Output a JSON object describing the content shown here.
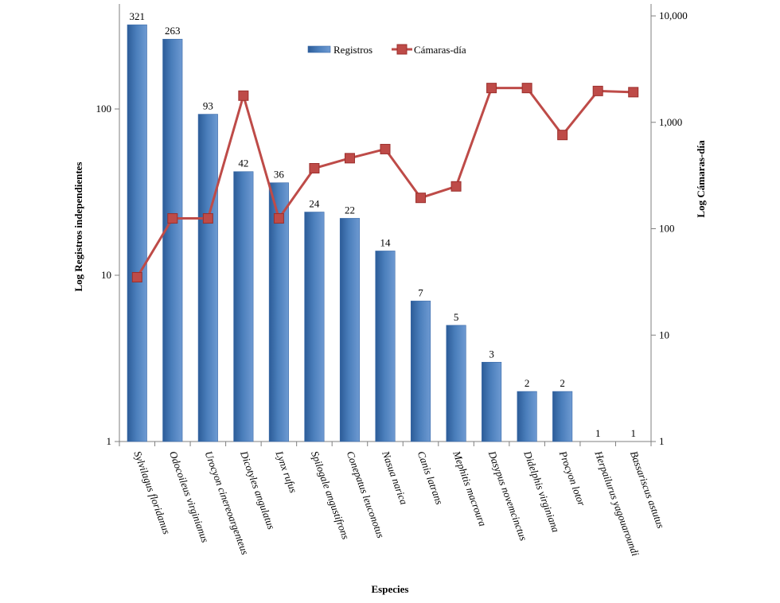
{
  "chart_data": {
    "type": "bar",
    "categories": [
      "Sylvilagus floridanus",
      "Odocoileus virginianus",
      "Urocyon cinereoargenteus",
      "Dicotyles angulatus",
      "Lynx rufus",
      "Spilogale angustifrons",
      "Conepatus leuconotus",
      "Nasua narica",
      "Canis latrans",
      "Mephitis macroura",
      "Dasypus novemcinctus",
      "Didelphis virginiana",
      "Procyon lotor",
      "Herpailurus yagouaroundi",
      "Bassariscus astutus"
    ],
    "series": [
      {
        "name": "Registros",
        "type": "bar",
        "axis": "left",
        "color": "#4a7ebb",
        "values": [
          321,
          263,
          93,
          42,
          36,
          24,
          22,
          14,
          7,
          5,
          3,
          2,
          2,
          1,
          1
        ],
        "data_labels": [
          "321",
          "263",
          "93",
          "42",
          "36",
          "24",
          "22",
          "14",
          "7",
          "5",
          "3",
          "2",
          "2",
          "1",
          "1"
        ]
      },
      {
        "name": "Cámaras-día",
        "type": "line",
        "axis": "right",
        "color": "#be4b48",
        "values": [
          35,
          125,
          125,
          1780,
          125,
          370,
          460,
          560,
          195,
          250,
          2100,
          2100,
          760,
          1970,
          1920
        ]
      }
    ],
    "xlabel": "Especies",
    "ylabel_left": "Log Registros independientes",
    "ylabel_right": "Log Cámaras-día",
    "y_left": {
      "scale": "log",
      "range": [
        1,
        350
      ],
      "ticks": [
        1,
        10,
        100
      ],
      "tick_labels": [
        "1",
        "10",
        "100"
      ]
    },
    "y_right": {
      "scale": "log",
      "range": [
        1,
        10000
      ],
      "ticks": [
        1,
        10,
        100,
        1000,
        10000
      ],
      "tick_labels": [
        "1",
        "10",
        "100",
        "1,000",
        "10,000"
      ]
    },
    "legend": {
      "placement": "top-center",
      "entries": [
        "Registros",
        "Cámaras-día"
      ]
    },
    "grid": false
  }
}
